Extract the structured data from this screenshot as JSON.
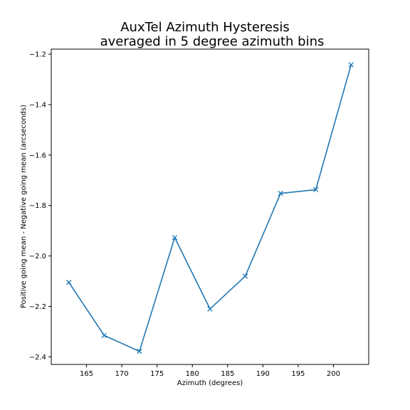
{
  "chart_data": {
    "type": "line",
    "title_line1": "AuxTel Azimuth Hysteresis",
    "title_line2": "averaged in 5 degree azimuth bins",
    "xlabel": "Azimuth (degrees)",
    "ylabel": "Positive going mean - Negative going mean (arcseconds)",
    "xlim": [
      160.0,
      205.0
    ],
    "ylim": [
      -2.43,
      -1.18
    ],
    "x_ticks": [
      165,
      170,
      175,
      180,
      185,
      190,
      195,
      200
    ],
    "y_ticks": [
      -2.4,
      -2.2,
      -2.0,
      -1.8,
      -1.6,
      -1.4,
      -1.2
    ],
    "x_tick_labels": [
      "165",
      "170",
      "175",
      "180",
      "185",
      "190",
      "195",
      "200"
    ],
    "y_tick_labels": [
      "−2.4",
      "−2.2",
      "−2.0",
      "−1.8",
      "−1.6",
      "−1.4",
      "−1.2"
    ],
    "grid": false,
    "marker": "x",
    "line_color": "#1f77b4",
    "series": [
      {
        "x": [
          162.5,
          167.5,
          172.5,
          177.5,
          182.5,
          187.5,
          192.5,
          197.5,
          202.5
        ],
        "y": [
          -2.105,
          -2.315,
          -2.378,
          -1.927,
          -2.21,
          -2.08,
          -1.752,
          -1.737,
          -1.242
        ]
      }
    ]
  }
}
